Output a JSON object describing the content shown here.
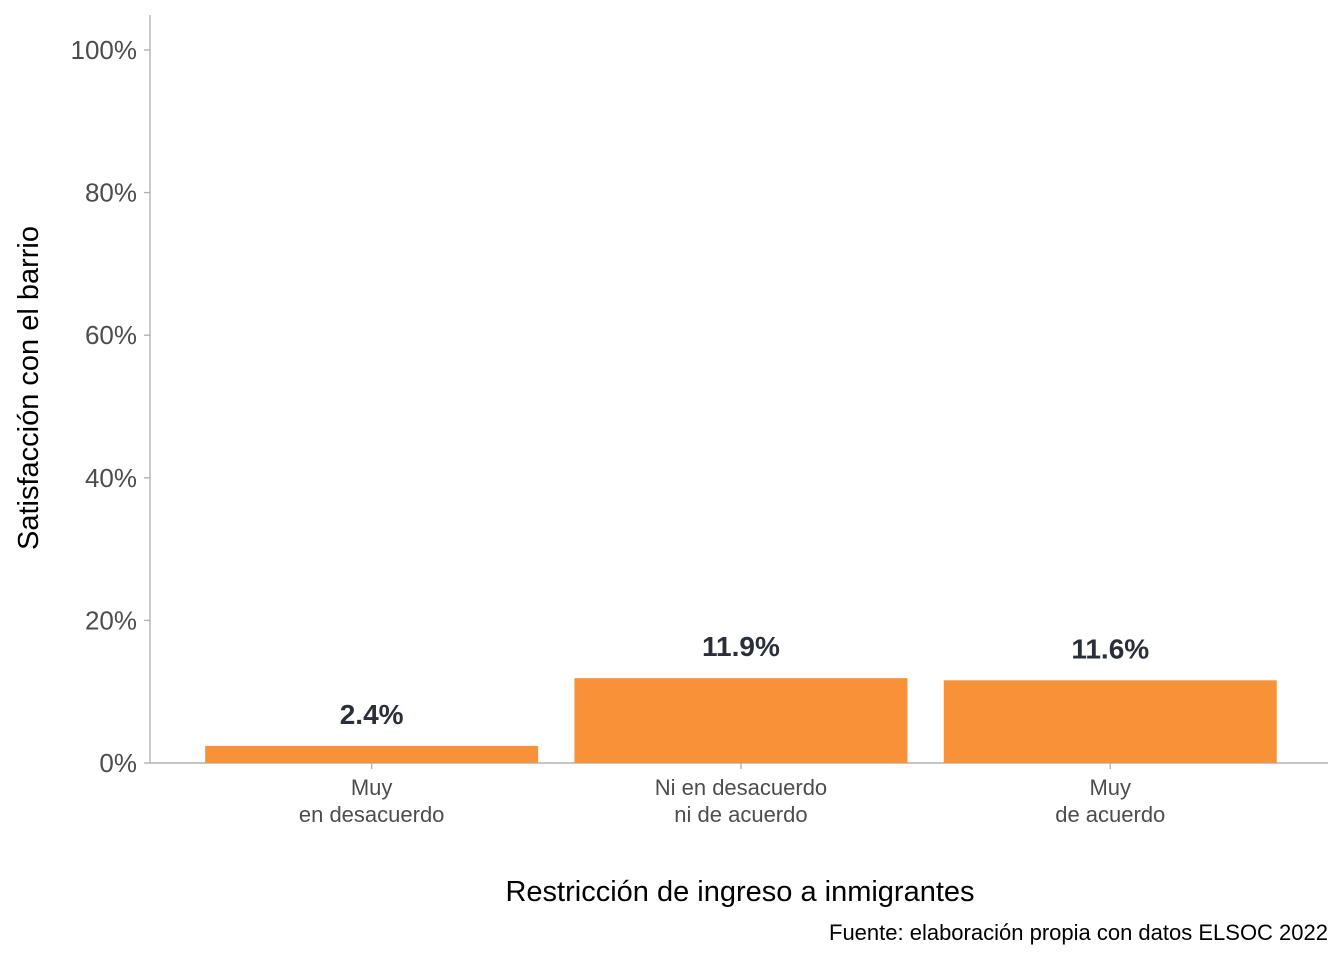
{
  "chart_data": {
    "type": "bar",
    "categories": [
      [
        "Muy",
        "en desacuerdo"
      ],
      [
        "Ni en desacuerdo",
        "ni de acuerdo"
      ],
      [
        "Muy",
        "de acuerdo"
      ]
    ],
    "values": [
      2.4,
      11.9,
      11.6
    ],
    "value_labels": [
      "2.4%",
      "11.9%",
      "11.6%"
    ],
    "xlabel": "Restricción de ingreso a inmigrantes",
    "ylabel": "Satisfacción con el barrio",
    "caption": "Fuente: elaboración propia con datos ELSOC 2022",
    "ylim": [
      0,
      100
    ],
    "yticks": [
      0,
      20,
      40,
      60,
      80,
      100
    ],
    "ytick_labels": [
      "0%",
      "20%",
      "40%",
      "60%",
      "80%",
      "100%"
    ],
    "bar_color": "#f79239",
    "grid": false
  }
}
